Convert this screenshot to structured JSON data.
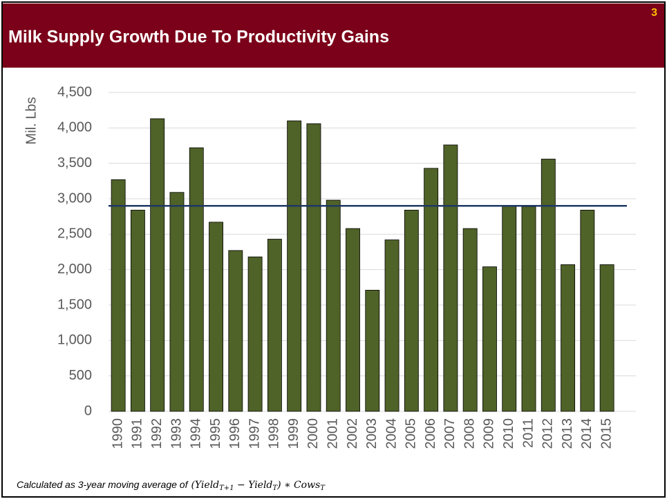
{
  "header": {
    "title": "Milk Supply Growth Due To Productivity Gains",
    "page_number": "3"
  },
  "chart_data": {
    "type": "bar",
    "ylabel": "Mil. Lbs",
    "categories": [
      "1990",
      "1991",
      "1992",
      "1993",
      "1994",
      "1995",
      "1996",
      "1997",
      "1998",
      "1999",
      "2000",
      "2001",
      "2002",
      "2003",
      "2004",
      "2005",
      "2006",
      "2007",
      "2008",
      "2009",
      "2010",
      "2011",
      "2012",
      "2013",
      "2014",
      "2015"
    ],
    "values": [
      3270,
      2840,
      4130,
      3090,
      3720,
      2670,
      2270,
      2180,
      2430,
      4100,
      4060,
      2980,
      2580,
      1710,
      2420,
      2840,
      3430,
      3760,
      2580,
      2040,
      2900,
      2890,
      3560,
      2070,
      2840,
      2070
    ],
    "color": "#4f6228",
    "reference_line": {
      "value": 2900,
      "color": "#1f3864"
    },
    "ylim": [
      0,
      4500
    ],
    "yticks": [
      0,
      500,
      {
        "value": 1000,
        "label": "1,000"
      },
      {
        "value": 1500,
        "label": "1,500"
      },
      {
        "value": 2000,
        "label": "2,000"
      },
      {
        "value": 2500,
        "label": "2,500"
      },
      {
        "value": 3000,
        "label": "3,000"
      },
      {
        "value": 3500,
        "label": "3,500"
      },
      {
        "value": 4000,
        "label": "4,000"
      },
      {
        "value": 4500,
        "label": "4,500"
      }
    ],
    "grid": true
  },
  "footnote": {
    "text": "Calculated as 3-year moving average of",
    "formula": [
      "(Yield",
      "T+1",
      "  − Yield",
      "T",
      ") ∗ Cows",
      "T"
    ]
  }
}
